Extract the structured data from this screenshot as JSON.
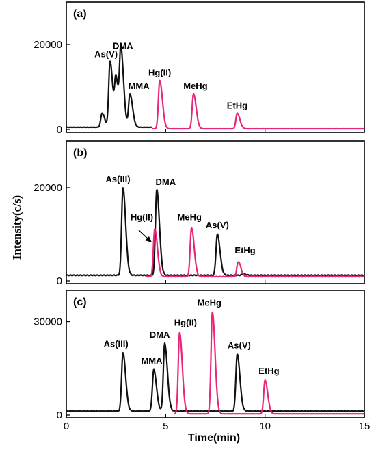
{
  "chart_data": {
    "type": "line",
    "ylabel": "Intensity(c/s)",
    "xlabel": "Time(min)",
    "xlim": [
      0,
      15
    ],
    "xticks": [
      0,
      5,
      10,
      15
    ],
    "colors": {
      "arsenic": "#111111",
      "mercury": "#e8267a"
    },
    "panels": [
      {
        "label": "(a)",
        "ylim": [
          0,
          30000
        ],
        "yticks": [
          0,
          20000
        ],
        "baseline": {
          "arsenic": 500,
          "mercury": 150
        },
        "series": [
          {
            "color": "#111111",
            "x_range": [
              0,
              4.3
            ],
            "peaks": [
              {
                "x": 1.8,
                "y": 3800
              },
              {
                "x": 2.2,
                "y": 16000
              },
              {
                "x": 2.5,
                "y": 11500
              },
              {
                "x": 2.75,
                "y": 18000
              },
              {
                "x": 3.2,
                "y": 8300
              }
            ]
          },
          {
            "color": "#e8267a",
            "x_range": [
              4.3,
              15
            ],
            "peaks": [
              {
                "x": 4.7,
                "y": 11500
              },
              {
                "x": 6.4,
                "y": 8400
              },
              {
                "x": 8.6,
                "y": 3800
              }
            ]
          }
        ],
        "annotations": [
          {
            "text": "As(V)",
            "x": 2.0,
            "y": 16400
          },
          {
            "text": "DMA",
            "x": 2.85,
            "y": 18300
          },
          {
            "text": "MMA",
            "x": 3.65,
            "y": 8900
          },
          {
            "text": "Hg(II)",
            "x": 4.7,
            "y": 12000
          },
          {
            "text": "MeHg",
            "x": 6.5,
            "y": 8900
          },
          {
            "text": "EtHg",
            "x": 8.6,
            "y": 4300
          }
        ]
      },
      {
        "label": "(b)",
        "ylim": [
          0,
          30000
        ],
        "yticks": [
          0,
          20000
        ],
        "baseline": {
          "arsenic": 1200,
          "mercury": 900
        },
        "series": [
          {
            "color": "#111111",
            "x_range": [
              0,
              15
            ],
            "peaks": [
              {
                "x": 2.85,
                "y": 20000
              },
              {
                "x": 4.55,
                "y": 19600
              },
              {
                "x": 7.6,
                "y": 10000
              },
              {
                "x": 8.9,
                "y": 1500
              }
            ]
          },
          {
            "color": "#e8267a",
            "x_range": [
              4.0,
              15
            ],
            "peaks": [
              {
                "x": 4.45,
                "y": 11200
              },
              {
                "x": 6.3,
                "y": 11400
              },
              {
                "x": 8.65,
                "y": 4100
              }
            ]
          }
        ],
        "annotations": [
          {
            "text": "As(III)",
            "x": 2.6,
            "y": 20600
          },
          {
            "text": "DMA",
            "x": 5.0,
            "y": 20000
          },
          {
            "text": "Hg(II)",
            "x": 3.8,
            "y": 12400
          },
          {
            "text": "MeHg",
            "x": 6.2,
            "y": 12400
          },
          {
            "text": "As(V)",
            "x": 7.6,
            "y": 10700
          },
          {
            "text": "EtHg",
            "x": 9.0,
            "y": 5300
          }
        ]
      },
      {
        "label": "(c)",
        "ylim": [
          0,
          40000
        ],
        "yticks": [
          0,
          30000
        ],
        "baseline": {
          "arsenic": 1300,
          "mercury": 400
        },
        "series": [
          {
            "color": "#111111",
            "x_range": [
              0,
              15
            ],
            "peaks": [
              {
                "x": 2.85,
                "y": 20000
              },
              {
                "x": 4.4,
                "y": 14600
              },
              {
                "x": 4.95,
                "y": 23000
              },
              {
                "x": 8.6,
                "y": 19500
              }
            ]
          },
          {
            "color": "#e8267a",
            "x_range": [
              5.4,
              15
            ],
            "peaks": [
              {
                "x": 5.7,
                "y": 26500
              },
              {
                "x": 7.35,
                "y": 33000
              },
              {
                "x": 10.0,
                "y": 11200
              }
            ]
          }
        ],
        "annotations": [
          {
            "text": "As(III)",
            "x": 2.5,
            "y": 21000
          },
          {
            "text": "MMA",
            "x": 4.3,
            "y": 15600
          },
          {
            "text": "DMA",
            "x": 4.7,
            "y": 24000
          },
          {
            "text": "Hg(II)",
            "x": 6.0,
            "y": 27800
          },
          {
            "text": "MeHg",
            "x": 7.2,
            "y": 34200
          },
          {
            "text": "As(V)",
            "x": 8.7,
            "y": 20500
          },
          {
            "text": "EtHg",
            "x": 10.2,
            "y": 12300
          }
        ]
      }
    ]
  }
}
